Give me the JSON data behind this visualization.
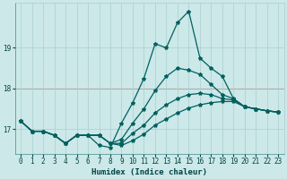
{
  "xlabel": "Humidex (Indice chaleur)",
  "background_color": "#cce8e8",
  "grid_color": "#aacfcf",
  "line_color": "#006060",
  "x_values": [
    0,
    1,
    2,
    3,
    4,
    5,
    6,
    7,
    8,
    9,
    10,
    11,
    12,
    13,
    14,
    15,
    16,
    17,
    18,
    19,
    20,
    21,
    22,
    23
  ],
  "series": [
    [
      17.2,
      16.95,
      16.95,
      16.85,
      16.65,
      16.85,
      16.85,
      16.85,
      16.65,
      16.6,
      16.72,
      16.88,
      17.1,
      17.25,
      17.4,
      17.52,
      17.6,
      17.65,
      17.68,
      17.68,
      17.55,
      17.5,
      17.45,
      17.42
    ],
    [
      17.2,
      16.95,
      16.95,
      16.85,
      16.65,
      16.85,
      16.85,
      16.85,
      16.65,
      16.65,
      16.9,
      17.1,
      17.4,
      17.6,
      17.75,
      17.85,
      17.88,
      17.85,
      17.75,
      17.72,
      17.55,
      17.5,
      17.45,
      17.42
    ],
    [
      17.2,
      16.95,
      16.95,
      16.85,
      16.65,
      16.85,
      16.85,
      16.85,
      16.65,
      16.75,
      17.15,
      17.5,
      17.95,
      18.3,
      18.5,
      18.45,
      18.35,
      18.1,
      17.85,
      17.75,
      17.55,
      17.5,
      17.45,
      17.42
    ],
    [
      17.2,
      16.95,
      16.95,
      16.85,
      16.65,
      16.85,
      16.85,
      16.6,
      16.55,
      17.15,
      17.65,
      18.25,
      19.1,
      19.0,
      19.62,
      19.9,
      18.75,
      18.5,
      18.3,
      17.75,
      17.55,
      17.5,
      17.45,
      17.42
    ]
  ],
  "ylim": [
    16.4,
    20.1
  ],
  "yticks": [
    17,
    18,
    19
  ],
  "xlim": [
    -0.5,
    23.5
  ],
  "xticks": [
    0,
    1,
    2,
    3,
    4,
    5,
    6,
    7,
    8,
    9,
    10,
    11,
    12,
    13,
    14,
    15,
    16,
    17,
    18,
    19,
    20,
    21,
    22,
    23
  ],
  "font_color": "#004444",
  "marker": "*",
  "markersize": 3,
  "linewidth": 0.9,
  "red_line_y": 18.0,
  "red_line_color": "#cc2222"
}
